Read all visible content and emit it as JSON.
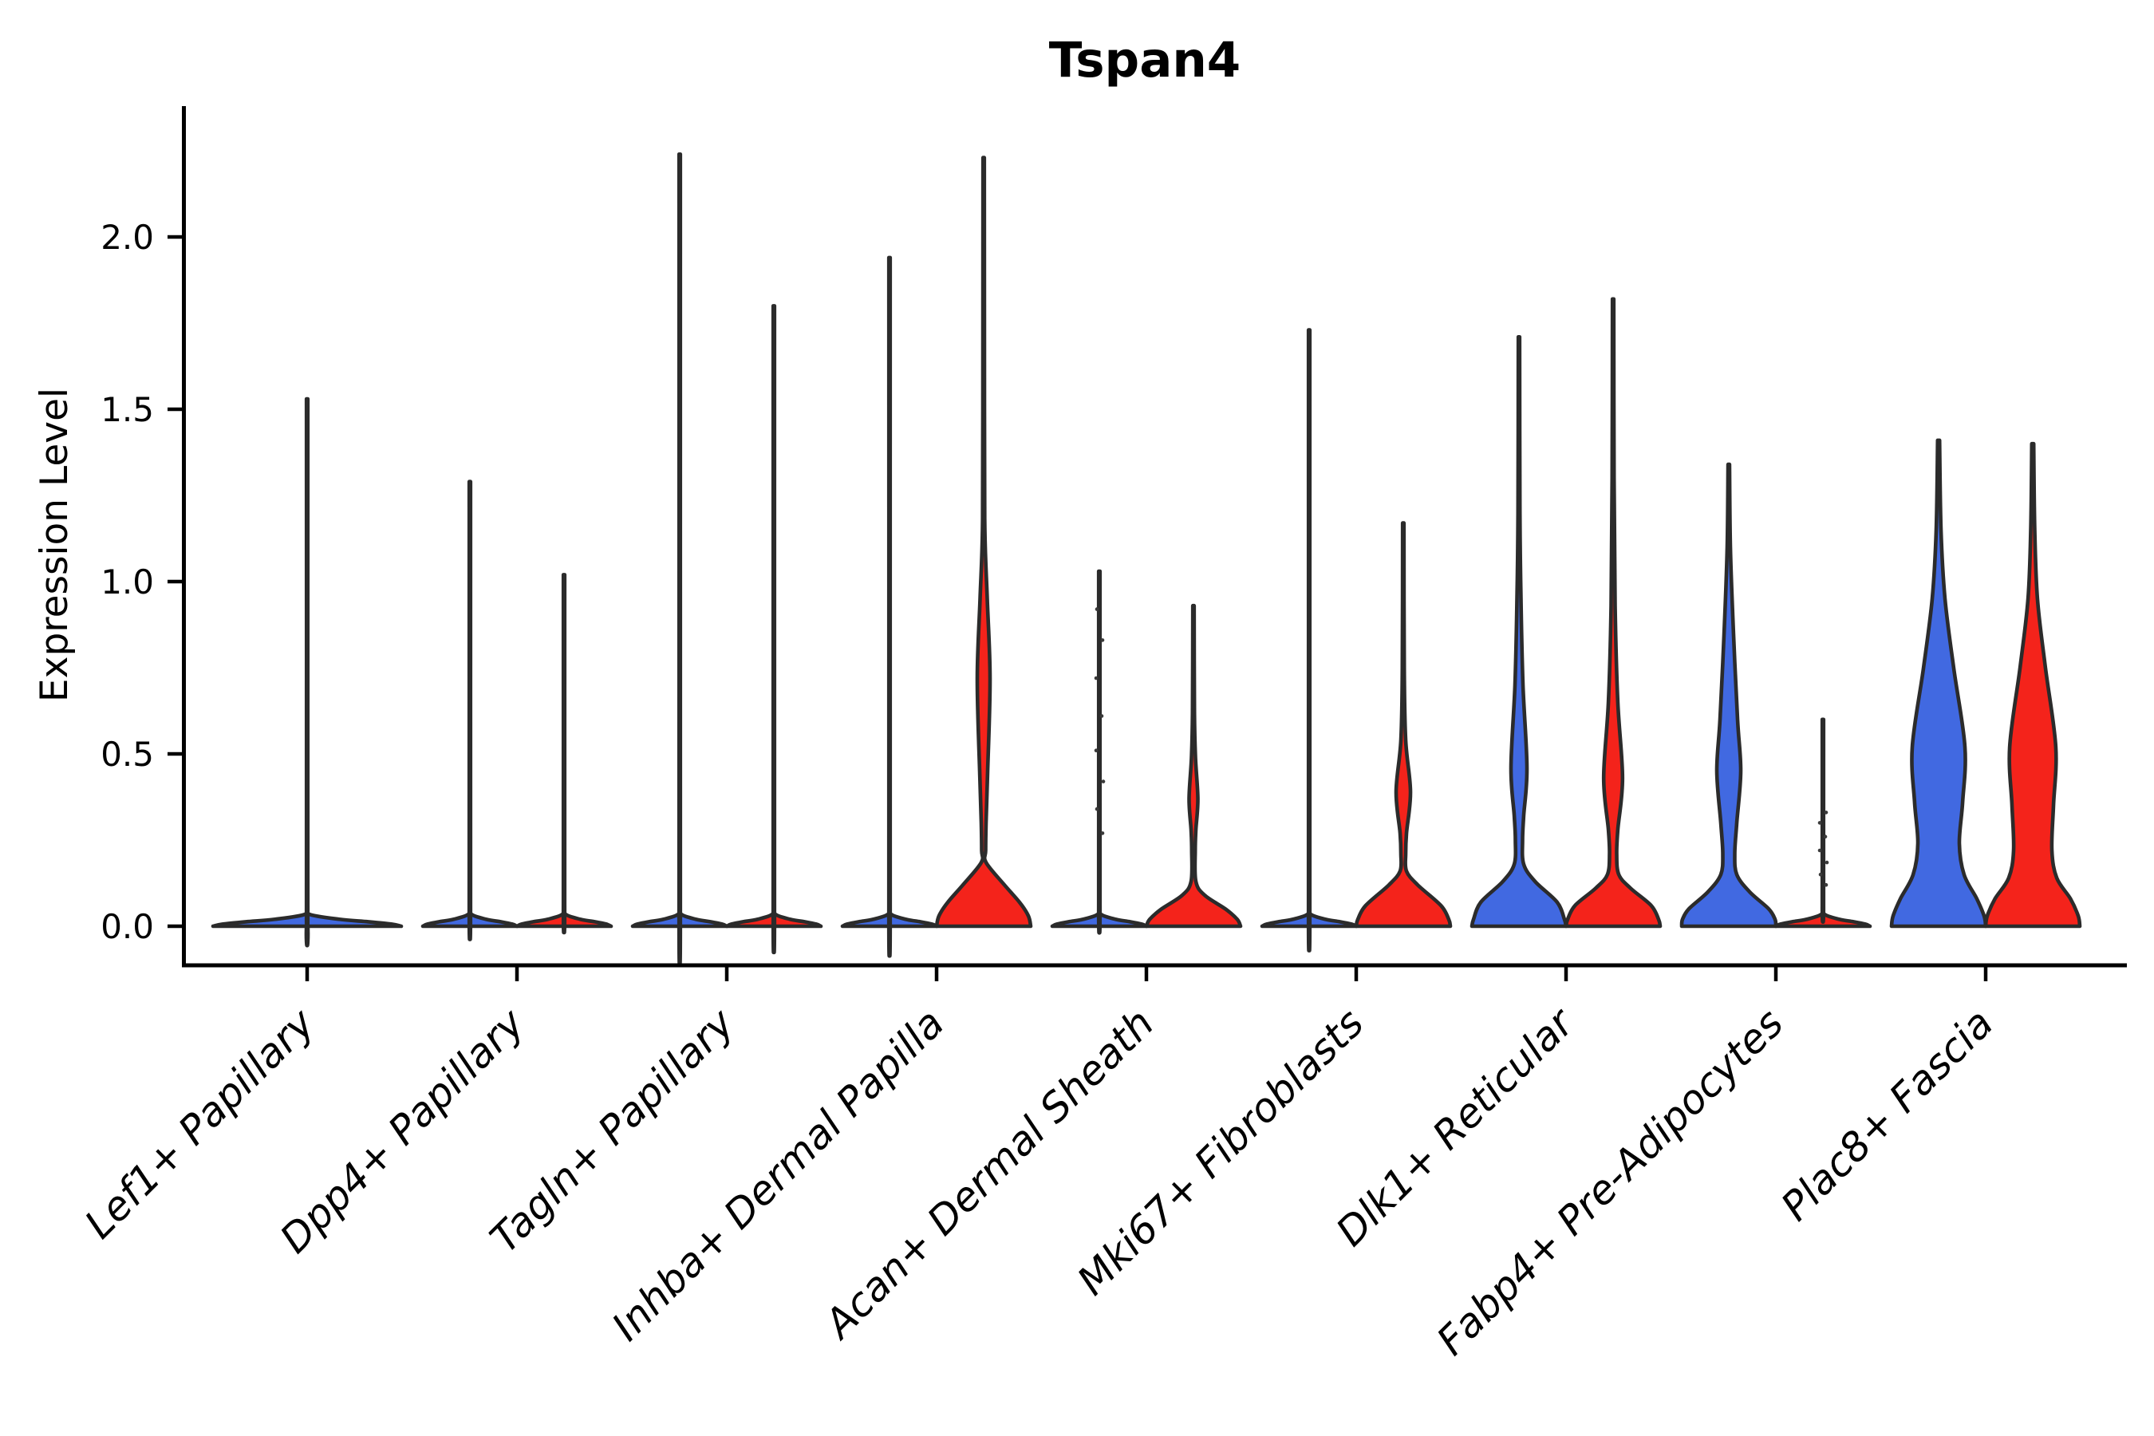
{
  "title": "Tspan4",
  "chart_data": {
    "type": "violin",
    "title": "Tspan4",
    "ylabel": "Expression Level",
    "xlabel": "",
    "ylim": [
      0,
      2.38
    ],
    "grid": false,
    "legend": "none",
    "yticks": [
      {
        "value": 0.0,
        "label": "0.0"
      },
      {
        "value": 0.5,
        "label": "0.5"
      },
      {
        "value": 1.0,
        "label": "1.0"
      },
      {
        "value": 1.5,
        "label": "1.5"
      },
      {
        "value": 2.0,
        "label": "2.0"
      }
    ],
    "categories": [
      "Lef1+ Papillary",
      "Dpp4+ Papillary",
      "Tagln+ Papillary",
      "Inhba+ Dermal Papilla",
      "Acan+ Dermal Sheath",
      "Mki67+ Fibroblasts",
      "Dlk1+ Reticular",
      "Fabp4+ Pre-Adipocytes",
      "Plac8+ Fascia"
    ],
    "colors": {
      "blue": "#4169E1",
      "red": "#F4231B",
      "outline": "#2b2b2b",
      "dot": "#3a3a3a"
    },
    "violins": [
      {
        "category": "Lef1+ Papillary",
        "category_index": 0,
        "side": 0,
        "color": "blue",
        "width_scale": 2,
        "max_expression": 1.53,
        "profile": [
          [
            1.53,
            0.007
          ],
          [
            0.06,
            0.007
          ],
          [
            0.035,
            0.02
          ],
          [
            0.02,
            0.35
          ],
          [
            0.013,
            0.65
          ],
          [
            0.006,
            0.9
          ],
          [
            0,
            1
          ]
        ],
        "dots": []
      },
      {
        "category": "Dpp4+ Papillary",
        "category_index": 1,
        "side": -1,
        "color": "blue",
        "width_scale": 1,
        "max_expression": 1.29,
        "profile": [
          [
            1.29,
            0.014
          ],
          [
            0.06,
            0.014
          ],
          [
            0.035,
            0.03
          ],
          [
            0.02,
            0.35
          ],
          [
            0.013,
            0.65
          ],
          [
            0.006,
            0.9
          ],
          [
            0,
            1
          ]
        ],
        "dots": []
      },
      {
        "category": "Dpp4+ Papillary",
        "category_index": 1,
        "side": 1,
        "color": "red",
        "width_scale": 1,
        "max_expression": 1.02,
        "profile": [
          [
            1.02,
            0.014
          ],
          [
            0.06,
            0.014
          ],
          [
            0.035,
            0.03
          ],
          [
            0.02,
            0.35
          ],
          [
            0.013,
            0.65
          ],
          [
            0.006,
            0.9
          ],
          [
            0,
            1
          ]
        ],
        "dots": []
      },
      {
        "category": "Tagln+ Papillary",
        "category_index": 2,
        "side": -1,
        "color": "blue",
        "width_scale": 1,
        "max_expression": 2.24,
        "profile": [
          [
            2.24,
            0.014
          ],
          [
            0.06,
            0.014
          ],
          [
            0.035,
            0.03
          ],
          [
            0.02,
            0.35
          ],
          [
            0.013,
            0.65
          ],
          [
            0.006,
            0.9
          ],
          [
            0,
            1
          ]
        ],
        "dots": []
      },
      {
        "category": "Tagln+ Papillary",
        "category_index": 2,
        "side": 1,
        "color": "red",
        "width_scale": 1,
        "max_expression": 1.8,
        "profile": [
          [
            1.8,
            0.014
          ],
          [
            0.06,
            0.014
          ],
          [
            0.035,
            0.03
          ],
          [
            0.02,
            0.35
          ],
          [
            0.013,
            0.65
          ],
          [
            0.006,
            0.9
          ],
          [
            0,
            1
          ]
        ],
        "dots": []
      },
      {
        "category": "Inhba+ Dermal Papilla",
        "category_index": 3,
        "side": -1,
        "color": "blue",
        "width_scale": 1,
        "max_expression": 1.94,
        "profile": [
          [
            1.94,
            0.014
          ],
          [
            0.06,
            0.014
          ],
          [
            0.035,
            0.03
          ],
          [
            0.02,
            0.35
          ],
          [
            0.013,
            0.65
          ],
          [
            0.006,
            0.9
          ],
          [
            0,
            1
          ]
        ],
        "dots": []
      },
      {
        "category": "Inhba+ Dermal Papilla",
        "category_index": 3,
        "side": 1,
        "color": "red",
        "width_scale": 1,
        "max_expression": 2.23,
        "profile": [
          [
            2.23,
            0.014
          ],
          [
            1.5,
            0.017
          ],
          [
            1.15,
            0.025
          ],
          [
            0.95,
            0.076
          ],
          [
            0.72,
            0.136
          ],
          [
            0.45,
            0.085
          ],
          [
            0.3,
            0.051
          ],
          [
            0.22,
            0.042
          ],
          [
            0.185,
            0.051
          ],
          [
            0.12,
            0.44
          ],
          [
            0.07,
            0.76
          ],
          [
            0.03,
            0.95
          ],
          [
            0,
            1
          ]
        ],
        "dots": []
      },
      {
        "category": "Acan+ Dermal Sheath",
        "category_index": 4,
        "side": -1,
        "color": "blue",
        "width_scale": 1,
        "max_expression": 1.03,
        "profile": [
          [
            1.03,
            0.014
          ],
          [
            0.06,
            0.014
          ],
          [
            0.035,
            0.03
          ],
          [
            0.02,
            0.35
          ],
          [
            0.013,
            0.65
          ],
          [
            0.006,
            0.9
          ],
          [
            0,
            1
          ]
        ],
        "dots": [
          [
            0.27,
            4
          ],
          [
            0.34,
            -3
          ],
          [
            0.42,
            5
          ],
          [
            0.51,
            -4
          ],
          [
            0.61,
            3
          ],
          [
            0.72,
            -4
          ],
          [
            0.83,
            4
          ],
          [
            0.92,
            -3
          ]
        ]
      },
      {
        "category": "Acan+ Dermal Sheath",
        "category_index": 4,
        "side": 1,
        "color": "red",
        "width_scale": 1,
        "max_expression": 0.93,
        "profile": [
          [
            0.93,
            0.014
          ],
          [
            0.62,
            0.02
          ],
          [
            0.49,
            0.042
          ],
          [
            0.37,
            0.093
          ],
          [
            0.28,
            0.051
          ],
          [
            0.22,
            0.037
          ],
          [
            0.13,
            0.051
          ],
          [
            0.09,
            0.237
          ],
          [
            0.05,
            0.68
          ],
          [
            0.02,
            0.93
          ],
          [
            0,
            1
          ]
        ],
        "dots": []
      },
      {
        "category": "Mki67+ Fibroblasts",
        "category_index": 5,
        "side": -1,
        "color": "blue",
        "width_scale": 1,
        "max_expression": 1.73,
        "profile": [
          [
            1.73,
            0.014
          ],
          [
            0.06,
            0.014
          ],
          [
            0.035,
            0.03
          ],
          [
            0.02,
            0.35
          ],
          [
            0.013,
            0.65
          ],
          [
            0.006,
            0.9
          ],
          [
            0,
            1
          ]
        ],
        "dots": []
      },
      {
        "category": "Mki67+ Fibroblasts",
        "category_index": 5,
        "side": 1,
        "color": "red",
        "width_scale": 1,
        "max_expression": 1.17,
        "profile": [
          [
            1.17,
            0.014
          ],
          [
            0.75,
            0.02
          ],
          [
            0.54,
            0.051
          ],
          [
            0.39,
            0.153
          ],
          [
            0.27,
            0.068
          ],
          [
            0.21,
            0.051
          ],
          [
            0.16,
            0.068
          ],
          [
            0.12,
            0.305
          ],
          [
            0.06,
            0.8
          ],
          [
            0.02,
            0.966
          ],
          [
            0,
            1
          ]
        ],
        "dots": []
      },
      {
        "category": "Dlk1+ Reticular",
        "category_index": 6,
        "side": -1,
        "color": "blue",
        "width_scale": 1,
        "max_expression": 1.71,
        "profile": [
          [
            1.71,
            0.014
          ],
          [
            1.2,
            0.02
          ],
          [
            0.95,
            0.042
          ],
          [
            0.7,
            0.085
          ],
          [
            0.46,
            0.17
          ],
          [
            0.32,
            0.1
          ],
          [
            0.25,
            0.076
          ],
          [
            0.18,
            0.1
          ],
          [
            0.13,
            0.34
          ],
          [
            0.07,
            0.81
          ],
          [
            0.02,
            0.966
          ],
          [
            0,
            1
          ]
        ],
        "dots": []
      },
      {
        "category": "Dlk1+ Reticular",
        "category_index": 6,
        "side": 1,
        "color": "red",
        "width_scale": 1,
        "max_expression": 1.82,
        "profile": [
          [
            1.82,
            0.014
          ],
          [
            1.3,
            0.02
          ],
          [
            0.93,
            0.042
          ],
          [
            0.65,
            0.1
          ],
          [
            0.43,
            0.2
          ],
          [
            0.28,
            0.1
          ],
          [
            0.21,
            0.076
          ],
          [
            0.15,
            0.12
          ],
          [
            0.11,
            0.373
          ],
          [
            0.06,
            0.81
          ],
          [
            0.02,
            0.966
          ],
          [
            0,
            1
          ]
        ],
        "dots": []
      },
      {
        "category": "Fabp4+ Pre-Adipocytes",
        "category_index": 7,
        "side": -1,
        "color": "blue",
        "width_scale": 1,
        "max_expression": 1.34,
        "profile": [
          [
            1.34,
            0.015
          ],
          [
            1.1,
            0.034
          ],
          [
            0.85,
            0.1
          ],
          [
            0.6,
            0.186
          ],
          [
            0.45,
            0.254
          ],
          [
            0.3,
            0.17
          ],
          [
            0.21,
            0.127
          ],
          [
            0.15,
            0.17
          ],
          [
            0.1,
            0.44
          ],
          [
            0.05,
            0.85
          ],
          [
            0.02,
            0.983
          ],
          [
            0,
            1
          ]
        ],
        "dots": []
      },
      {
        "category": "Fabp4+ Pre-Adipocytes",
        "category_index": 7,
        "side": 1,
        "color": "red",
        "width_scale": 1,
        "max_expression": 0.6,
        "profile": [
          [
            0.6,
            0.014
          ],
          [
            0.06,
            0.014
          ],
          [
            0.035,
            0.03
          ],
          [
            0.02,
            0.35
          ],
          [
            0.013,
            0.65
          ],
          [
            0.006,
            0.9
          ],
          [
            0,
            1
          ]
        ],
        "dots": [
          [
            0.12,
            4
          ],
          [
            0.15,
            -3
          ],
          [
            0.185,
            5
          ],
          [
            0.22,
            -4
          ],
          [
            0.26,
            3
          ],
          [
            0.3,
            -4
          ],
          [
            0.33,
            4
          ]
        ]
      },
      {
        "category": "Plac8+ Fascia",
        "category_index": 8,
        "side": -1,
        "color": "blue",
        "width_scale": 1,
        "max_expression": 1.41,
        "profile": [
          [
            1.41,
            0.02
          ],
          [
            1.15,
            0.051
          ],
          [
            0.95,
            0.136
          ],
          [
            0.75,
            0.32
          ],
          [
            0.52,
            0.56
          ],
          [
            0.36,
            0.51
          ],
          [
            0.24,
            0.44
          ],
          [
            0.15,
            0.54
          ],
          [
            0.08,
            0.81
          ],
          [
            0.03,
            0.966
          ],
          [
            0,
            1
          ]
        ],
        "dots": []
      },
      {
        "category": "Plac8+ Fascia",
        "category_index": 8,
        "side": 1,
        "color": "red",
        "width_scale": 1,
        "max_expression": 1.4,
        "profile": [
          [
            1.4,
            0.02
          ],
          [
            1.15,
            0.042
          ],
          [
            0.95,
            0.1
          ],
          [
            0.75,
            0.27
          ],
          [
            0.52,
            0.49
          ],
          [
            0.35,
            0.44
          ],
          [
            0.22,
            0.407
          ],
          [
            0.14,
            0.51
          ],
          [
            0.08,
            0.8
          ],
          [
            0.03,
            0.966
          ],
          [
            0,
            1
          ]
        ],
        "dots": []
      }
    ]
  }
}
